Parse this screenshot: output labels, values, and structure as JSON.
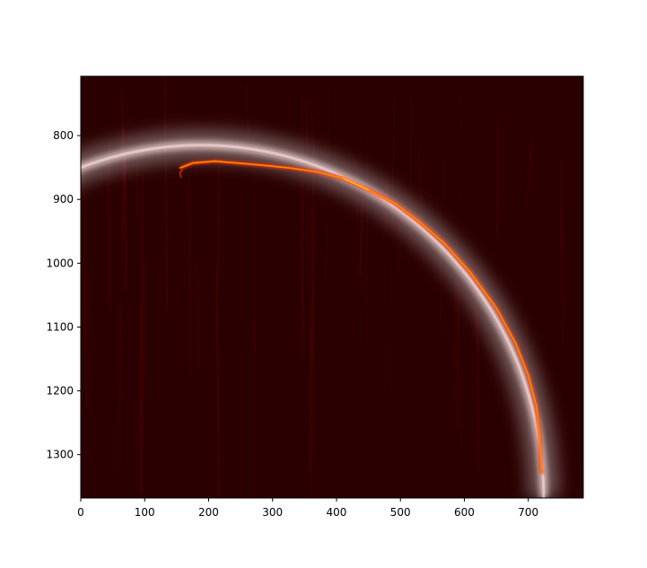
{
  "chart_data": {
    "type": "heatmap",
    "title": "",
    "xlabel": "",
    "ylabel": "",
    "xlim": [
      0,
      786
    ],
    "ylim": [
      1368,
      707
    ],
    "y_inverted": true,
    "grid": false,
    "colormap": "hot",
    "background_color": "#2a0000",
    "xticks": [
      0,
      100,
      200,
      300,
      400,
      500,
      600,
      700
    ],
    "yticks": [
      800,
      900,
      1000,
      1100,
      1200,
      1300
    ],
    "arc_fit": {
      "description_units": "data",
      "center": [
        188,
        1368
      ],
      "radius_x": 536,
      "radius_y": 553,
      "color": "#ffe6e6"
    },
    "bright_trace": [
      [
        155,
        851
      ],
      [
        175,
        843
      ],
      [
        210,
        840
      ],
      [
        245,
        843
      ],
      [
        280,
        846
      ],
      [
        330,
        851
      ],
      [
        370,
        857
      ],
      [
        410,
        867
      ],
      [
        450,
        885
      ],
      [
        490,
        905
      ],
      [
        530,
        935
      ],
      [
        570,
        970
      ],
      [
        610,
        1015
      ],
      [
        650,
        1070
      ],
      [
        680,
        1125
      ],
      [
        700,
        1175
      ],
      [
        713,
        1225
      ],
      [
        718,
        1270
      ],
      [
        720,
        1320
      ],
      [
        722,
        1330
      ]
    ],
    "hook_trace": [
      [
        160,
        853
      ],
      [
        155,
        858
      ],
      [
        157,
        866
      ]
    ]
  }
}
